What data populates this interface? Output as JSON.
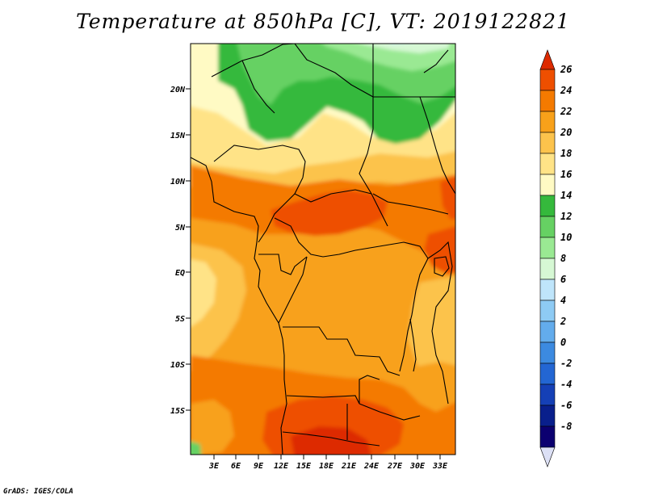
{
  "title": "Temperature at 850hPa [C], VT: 2019122821",
  "credit": "GrADS: IGES/COLA",
  "map": {
    "lat_labels": [
      "20N",
      "15N",
      "10N",
      "5N",
      "EQ",
      "5S",
      "10S",
      "15S"
    ],
    "lon_labels": [
      "3E",
      "6E",
      "9E",
      "12E",
      "15E",
      "18E",
      "21E",
      "24E",
      "27E",
      "30E",
      "33E"
    ]
  },
  "colorbar": {
    "labels": [
      "26",
      "24",
      "22",
      "20",
      "18",
      "16",
      "14",
      "12",
      "10",
      "8",
      "6",
      "4",
      "2",
      "0",
      "-2",
      "-4",
      "-6",
      "-8"
    ],
    "colors": [
      "#dd2a00",
      "#ee4f00",
      "#f47a00",
      "#f8a11a",
      "#fcc34c",
      "#ffe387",
      "#fffac4",
      "#35b93c",
      "#66d163",
      "#9ae993",
      "#d6f8d4",
      "#bfe5fb",
      "#8ecbf4",
      "#63acec",
      "#3c8ae0",
      "#2366d3",
      "#1540b6",
      "#091f8c",
      "#0b0070",
      "#dce0f5"
    ]
  }
}
